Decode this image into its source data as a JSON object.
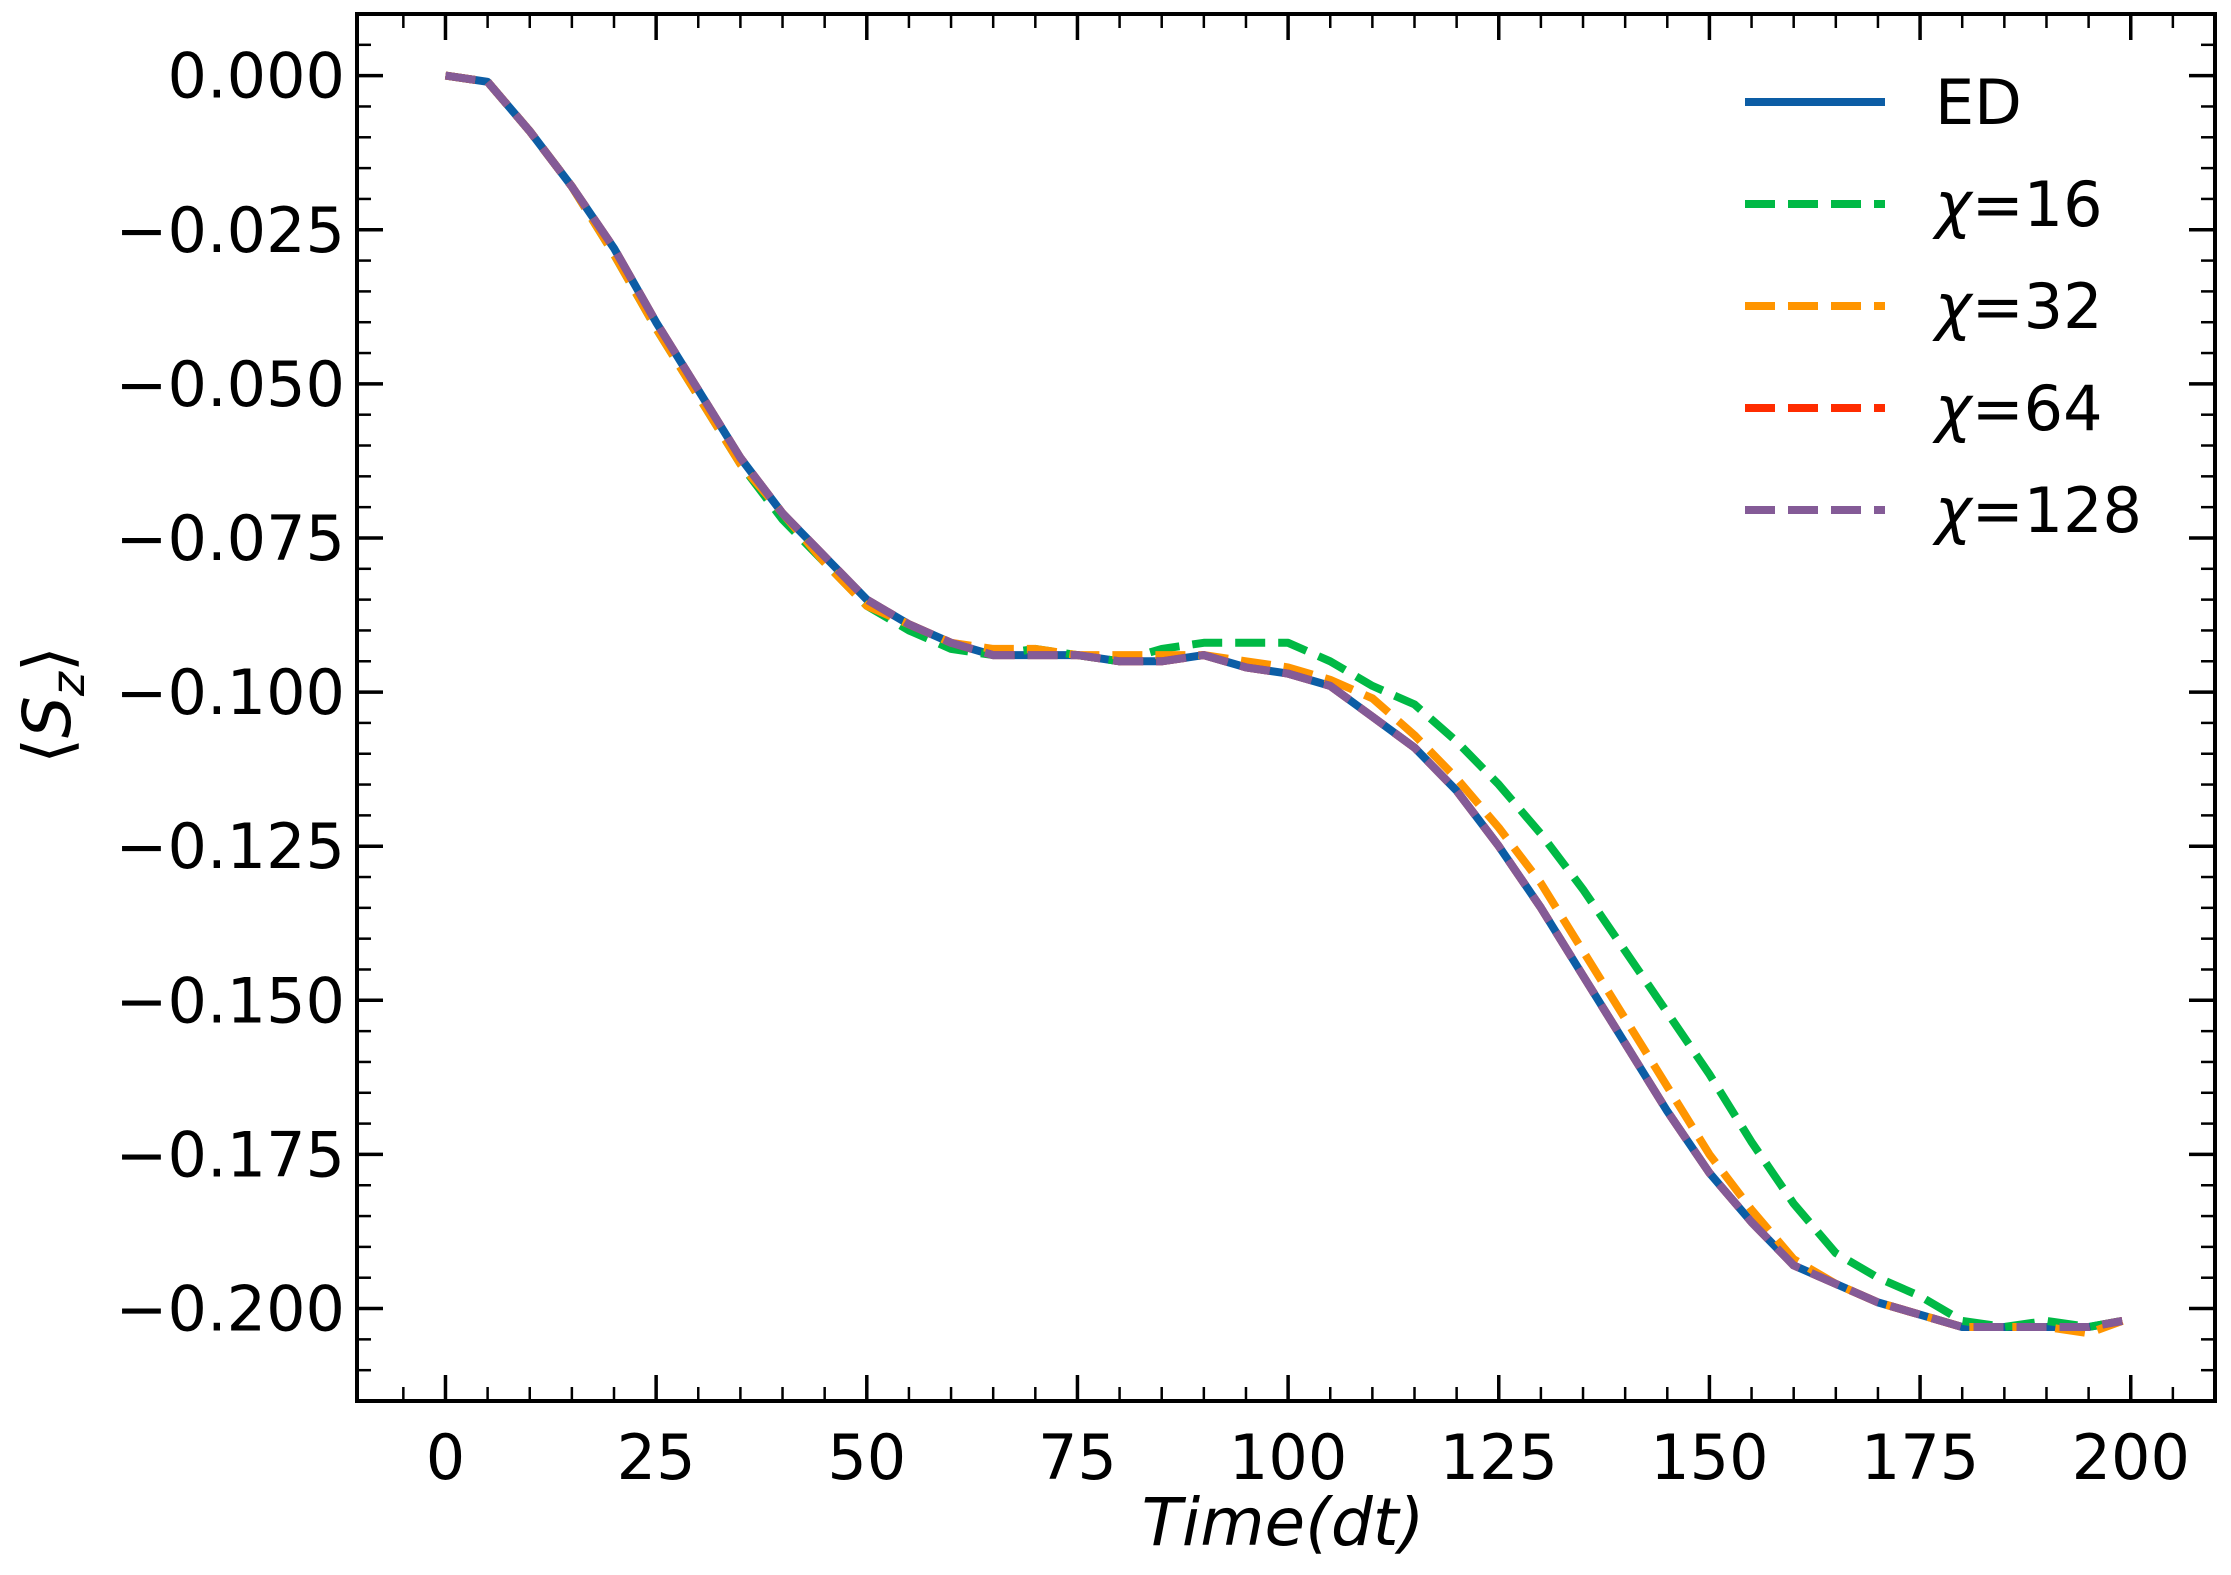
{
  "chart_data": {
    "type": "line",
    "title": "",
    "xlabel": "Time(dt)",
    "ylabel": "⟨S_z⟩",
    "ylabel_display": {
      "open": "⟨",
      "main": "S",
      "sub": "z",
      "close": "⟩"
    },
    "xlim": [
      -10.5,
      210
    ],
    "ylim": [
      -0.215,
      0.01
    ],
    "xticks": [
      0,
      25,
      50,
      75,
      100,
      125,
      150,
      175,
      200
    ],
    "xtick_labels": [
      "0",
      "25",
      "50",
      "75",
      "100",
      "125",
      "150",
      "175",
      "200"
    ],
    "yticks": [
      0.0,
      -0.025,
      -0.05,
      -0.075,
      -0.1,
      -0.125,
      -0.15,
      -0.175,
      -0.2
    ],
    "ytick_labels": [
      "0.000",
      "−0.025",
      "−0.050",
      "−0.075",
      "−0.100",
      "−0.125",
      "−0.150",
      "−0.175",
      "−0.200"
    ],
    "grid": false,
    "legend_position": "top-right",
    "series": [
      {
        "name": "ED",
        "label_prefix": "",
        "label_value": "ED",
        "color": "#0C5DA5",
        "dashed": false,
        "x": [
          0,
          5,
          10,
          15,
          20,
          25,
          30,
          35,
          40,
          45,
          50,
          55,
          60,
          65,
          70,
          75,
          80,
          85,
          90,
          95,
          100,
          105,
          110,
          115,
          120,
          125,
          130,
          135,
          140,
          145,
          150,
          155,
          160,
          165,
          170,
          175,
          180,
          185,
          190,
          195,
          199
        ],
        "y": [
          0.0,
          -0.001,
          -0.009,
          -0.018,
          -0.028,
          -0.04,
          -0.051,
          -0.062,
          -0.071,
          -0.078,
          -0.085,
          -0.089,
          -0.092,
          -0.094,
          -0.094,
          -0.094,
          -0.095,
          -0.095,
          -0.094,
          -0.096,
          -0.097,
          -0.099,
          -0.104,
          -0.109,
          -0.116,
          -0.125,
          -0.135,
          -0.146,
          -0.157,
          -0.168,
          -0.178,
          -0.186,
          -0.193,
          -0.196,
          -0.199,
          -0.201,
          -0.203,
          -0.203,
          -0.203,
          -0.203,
          -0.202
        ]
      },
      {
        "name": "χ=16",
        "label_prefix": "χ",
        "label_value": "=16",
        "color": "#00B945",
        "dashed": true,
        "x": [
          0,
          5,
          10,
          15,
          20,
          25,
          30,
          35,
          40,
          45,
          50,
          55,
          60,
          65,
          70,
          75,
          80,
          85,
          90,
          95,
          100,
          105,
          110,
          115,
          120,
          125,
          130,
          135,
          140,
          145,
          150,
          155,
          160,
          165,
          170,
          175,
          180,
          185,
          190,
          195,
          199
        ],
        "y": [
          0.0,
          -0.001,
          -0.009,
          -0.018,
          -0.029,
          -0.041,
          -0.052,
          -0.063,
          -0.072,
          -0.079,
          -0.086,
          -0.09,
          -0.093,
          -0.094,
          -0.093,
          -0.094,
          -0.095,
          -0.093,
          -0.092,
          -0.092,
          -0.092,
          -0.095,
          -0.099,
          -0.102,
          -0.108,
          -0.115,
          -0.123,
          -0.132,
          -0.142,
          -0.152,
          -0.162,
          -0.173,
          -0.183,
          -0.191,
          -0.195,
          -0.198,
          -0.202,
          -0.203,
          -0.202,
          -0.203,
          -0.202
        ]
      },
      {
        "name": "χ=32",
        "label_prefix": "χ",
        "label_value": "=32",
        "color": "#FF9500",
        "dashed": true,
        "x": [
          0,
          5,
          10,
          15,
          20,
          25,
          30,
          35,
          40,
          45,
          50,
          55,
          60,
          65,
          70,
          75,
          80,
          85,
          90,
          95,
          100,
          105,
          110,
          115,
          120,
          125,
          130,
          135,
          140,
          145,
          150,
          155,
          160,
          165,
          170,
          175,
          180,
          185,
          190,
          195,
          199
        ],
        "y": [
          0.0,
          -0.001,
          -0.009,
          -0.018,
          -0.029,
          -0.041,
          -0.052,
          -0.063,
          -0.071,
          -0.079,
          -0.086,
          -0.089,
          -0.092,
          -0.093,
          -0.093,
          -0.094,
          -0.094,
          -0.094,
          -0.094,
          -0.095,
          -0.096,
          -0.098,
          -0.101,
          -0.107,
          -0.114,
          -0.122,
          -0.131,
          -0.142,
          -0.153,
          -0.164,
          -0.175,
          -0.184,
          -0.192,
          -0.196,
          -0.199,
          -0.201,
          -0.203,
          -0.203,
          -0.203,
          -0.204,
          -0.202
        ]
      },
      {
        "name": "χ=64",
        "label_prefix": "χ",
        "label_value": "=64",
        "color": "#FF2C00",
        "dashed": true,
        "x": [
          0,
          5,
          10,
          15,
          20,
          25,
          30,
          35,
          40,
          45,
          50,
          55,
          60,
          65,
          70,
          75,
          80,
          85,
          90,
          95,
          100,
          105,
          110,
          115,
          120,
          125,
          130,
          135,
          140,
          145,
          150,
          155,
          160,
          165,
          170,
          175,
          180,
          185,
          190,
          195,
          199
        ],
        "y": [
          0.0,
          -0.001,
          -0.009,
          -0.018,
          -0.028,
          -0.04,
          -0.051,
          -0.062,
          -0.071,
          -0.078,
          -0.085,
          -0.089,
          -0.092,
          -0.094,
          -0.094,
          -0.094,
          -0.095,
          -0.095,
          -0.094,
          -0.096,
          -0.097,
          -0.099,
          -0.104,
          -0.109,
          -0.116,
          -0.125,
          -0.135,
          -0.146,
          -0.157,
          -0.168,
          -0.178,
          -0.186,
          -0.193,
          -0.196,
          -0.199,
          -0.201,
          -0.203,
          -0.203,
          -0.203,
          -0.203,
          -0.202
        ]
      },
      {
        "name": "χ=128",
        "label_prefix": "χ",
        "label_value": "=128",
        "color": "#845B97",
        "dashed": true,
        "x": [
          0,
          5,
          10,
          15,
          20,
          25,
          30,
          35,
          40,
          45,
          50,
          55,
          60,
          65,
          70,
          75,
          80,
          85,
          90,
          95,
          100,
          105,
          110,
          115,
          120,
          125,
          130,
          135,
          140,
          145,
          150,
          155,
          160,
          165,
          170,
          175,
          180,
          185,
          190,
          195,
          199
        ],
        "y": [
          0.0,
          -0.001,
          -0.009,
          -0.018,
          -0.028,
          -0.04,
          -0.051,
          -0.062,
          -0.071,
          -0.078,
          -0.085,
          -0.089,
          -0.092,
          -0.094,
          -0.094,
          -0.094,
          -0.095,
          -0.095,
          -0.094,
          -0.096,
          -0.097,
          -0.099,
          -0.104,
          -0.109,
          -0.116,
          -0.125,
          -0.135,
          -0.146,
          -0.157,
          -0.168,
          -0.178,
          -0.186,
          -0.193,
          -0.196,
          -0.199,
          -0.201,
          -0.203,
          -0.203,
          -0.203,
          -0.203,
          -0.202
        ]
      }
    ]
  }
}
